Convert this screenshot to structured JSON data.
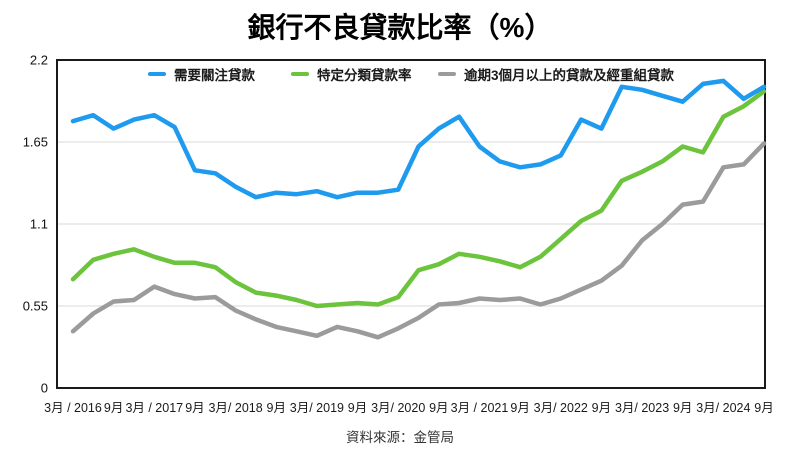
{
  "source": "資料來源：金管局",
  "chart_data": {
    "type": "line",
    "title": "銀行不良貸款比率（%）",
    "ylabel": "",
    "xlabel": "",
    "ylim": [
      0,
      2.2
    ],
    "y_ticks": [
      0,
      0.55,
      1.1,
      1.65,
      2.2
    ],
    "grid": true,
    "legend_position": "top-inside",
    "x_label_every_n_points": 2,
    "x_labels": [
      "3月 / 2016",
      "9月",
      "3月 / 2017",
      "9月",
      "3月/ 2018",
      "9月",
      "3月/ 2019",
      "9月",
      "3月/ 2020",
      "9月",
      "3月 / 2021",
      "9月",
      "3月/ 2022",
      "9月",
      "3月/ 2023",
      "9月",
      "3月/ 2024",
      "9月"
    ],
    "x_frequency": "quarterly",
    "series": [
      {
        "name": "需要關注貸款",
        "color": "#1e9bef",
        "values": [
          1.79,
          1.83,
          1.74,
          1.8,
          1.83,
          1.75,
          1.46,
          1.44,
          1.35,
          1.28,
          1.31,
          1.3,
          1.32,
          1.28,
          1.31,
          1.31,
          1.33,
          1.62,
          1.74,
          1.82,
          1.62,
          1.52,
          1.48,
          1.5,
          1.56,
          1.8,
          1.74,
          2.02,
          2.0,
          1.96,
          1.92,
          2.04,
          2.06,
          1.94,
          2.02
        ]
      },
      {
        "name": "特定分類貸款率",
        "color": "#6cc43c",
        "values": [
          0.73,
          0.86,
          0.9,
          0.93,
          0.88,
          0.84,
          0.84,
          0.81,
          0.71,
          0.64,
          0.62,
          0.59,
          0.55,
          0.56,
          0.57,
          0.56,
          0.61,
          0.79,
          0.83,
          0.9,
          0.88,
          0.85,
          0.81,
          0.88,
          1.0,
          1.12,
          1.19,
          1.39,
          1.45,
          1.52,
          1.62,
          1.58,
          1.82,
          1.89,
          1.99
        ]
      },
      {
        "name": "逾期3個月以上的貸款及經重組貸款",
        "color": "#9b9b9b",
        "values": [
          0.38,
          0.5,
          0.58,
          0.59,
          0.68,
          0.63,
          0.6,
          0.61,
          0.52,
          0.46,
          0.41,
          0.38,
          0.35,
          0.41,
          0.38,
          0.34,
          0.4,
          0.47,
          0.56,
          0.57,
          0.6,
          0.59,
          0.6,
          0.56,
          0.6,
          0.66,
          0.72,
          0.82,
          0.99,
          1.1,
          1.23,
          1.25,
          1.48,
          1.5,
          1.64
        ]
      }
    ],
    "colors": {
      "axis_border": "#1a1a1a",
      "gridline": "#d9d9d9",
      "background": "#ffffff"
    }
  }
}
